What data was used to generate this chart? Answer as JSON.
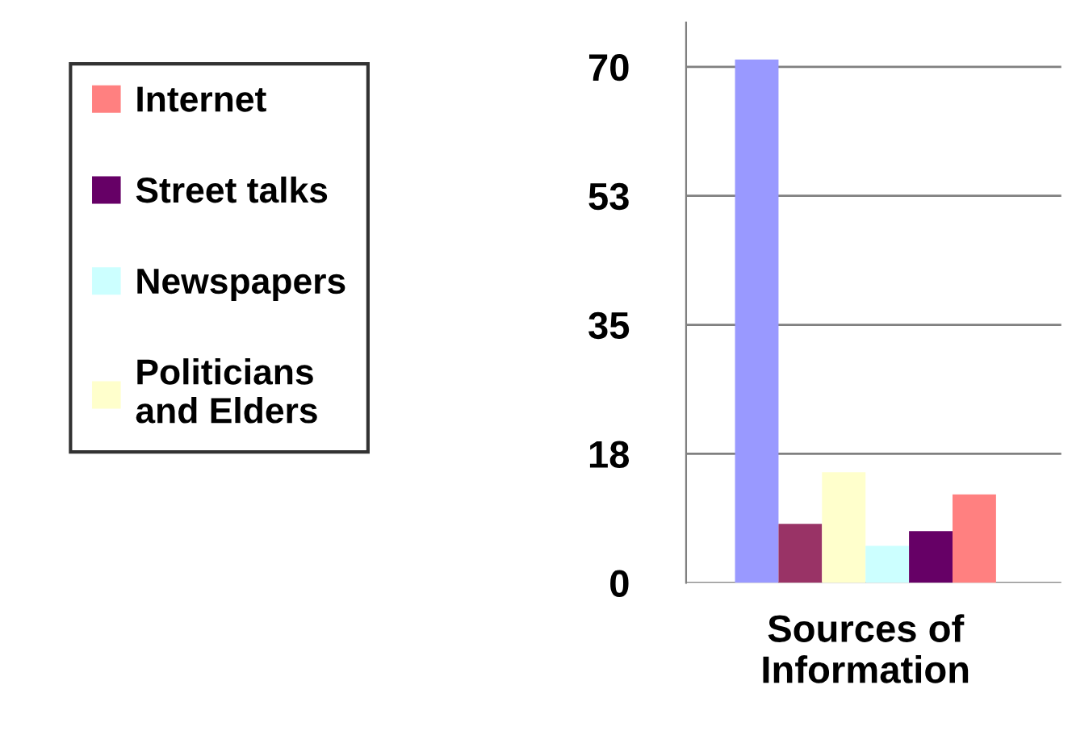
{
  "chart_data": {
    "type": "bar",
    "categories": [
      "Sources of\nInformation"
    ],
    "series": [
      {
        "color": "#9999ff",
        "values": [
          71
        ]
      },
      {
        "color": "#993366",
        "values": [
          8
        ]
      },
      {
        "name": "Politicians\nand Elders",
        "color": "#ffffcc",
        "values": [
          15
        ]
      },
      {
        "name": "Newspapers",
        "color": "#ccffff",
        "values": [
          5
        ]
      },
      {
        "name": "Street talks",
        "color": "#660066",
        "values": [
          7
        ]
      },
      {
        "name": "Internet",
        "color": "#ff8080",
        "values": [
          12
        ]
      }
    ],
    "ylim": [
      0,
      76
    ],
    "yticks": [
      0,
      {
        "value": 17.5,
        "label": "18"
      },
      35,
      {
        "value": 52.5,
        "label": "53"
      },
      70
    ],
    "grid": "y",
    "legend": "left"
  }
}
